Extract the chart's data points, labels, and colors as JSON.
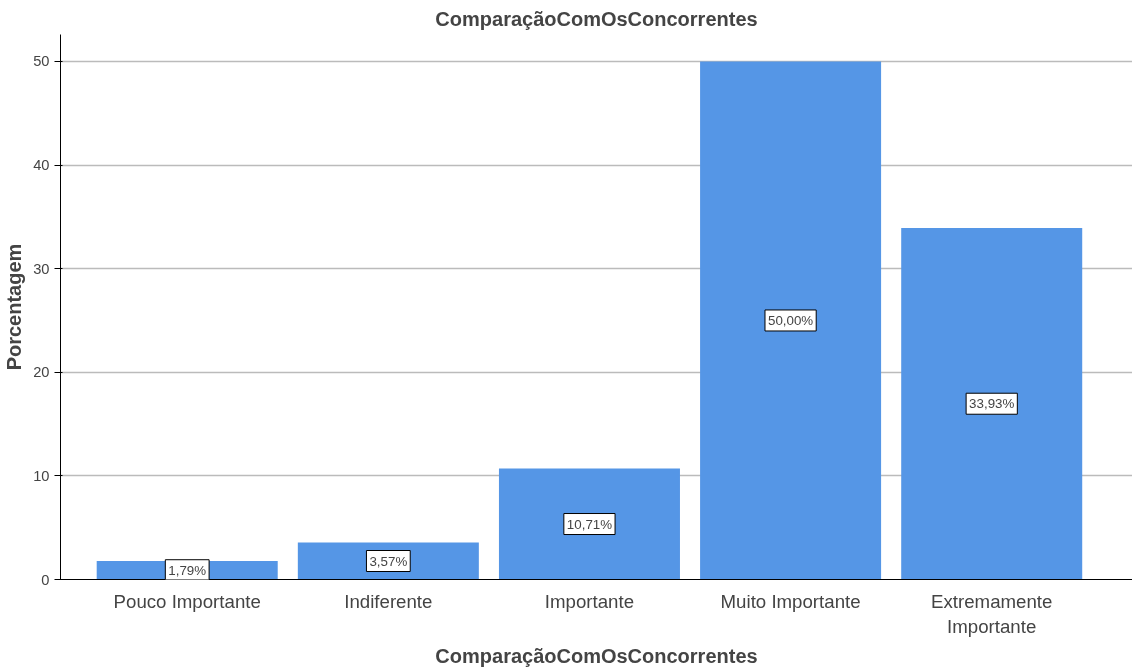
{
  "chart_data": {
    "type": "bar",
    "title": "ComparaçãoComOsConcorrentes",
    "xlabel": "ComparaçãoComOsConcorrentes",
    "ylabel": "Porcentagem",
    "categories": [
      "Pouco Importante",
      "Indiferente",
      "Importante",
      "Muito Importante",
      "Extremamente Importante"
    ],
    "values": [
      1.79,
      3.57,
      10.71,
      50.0,
      33.93
    ],
    "value_labels": [
      "1,79%",
      "3,57%",
      "10,71%",
      "50,00%",
      "33,93%"
    ],
    "color": "#5596e6",
    "ylim": [
      0,
      52.6
    ],
    "yticks": [
      0,
      10,
      20,
      30,
      40,
      50
    ],
    "grid": "y"
  }
}
